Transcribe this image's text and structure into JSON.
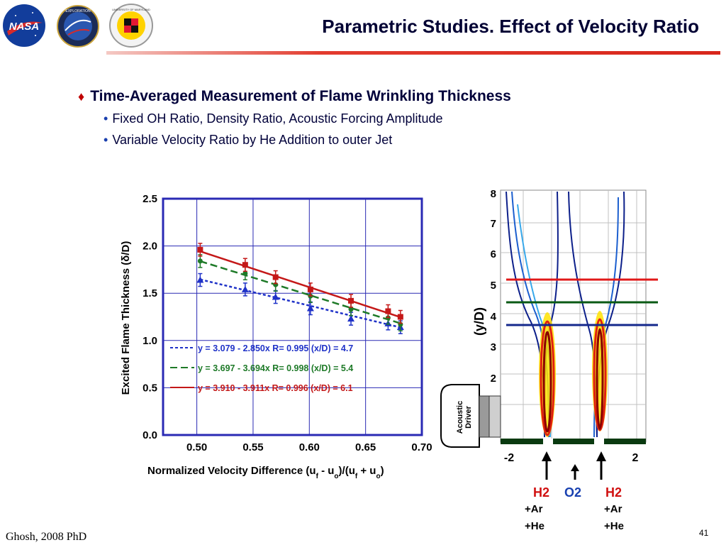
{
  "header": {
    "title": "Parametric Studies. Effect of Velocity Ratio",
    "logos": [
      "NASA",
      "EXPLORATION",
      "UNIVERSITY OF MARYLAND"
    ]
  },
  "bullets": {
    "main": "Time-Averaged Measurement of Flame Wrinkling Thickness",
    "sub": [
      "Fixed OH Ratio, Density Ratio, Acoustic Forcing Amplitude",
      "Variable Velocity Ratio by He Addition to outer Jet"
    ]
  },
  "chart_data": {
    "type": "scatter",
    "xlabel": "Normalized Velocity Difference (u_f - u_o)/(u_f + u_o)",
    "ylabel": "Excited Flame Thickness (δ/D)",
    "xlim": [
      0.47,
      0.7
    ],
    "ylim": [
      0.0,
      2.5
    ],
    "xticks": [
      "0.50",
      "0.55",
      "0.60",
      "0.65",
      "0.70"
    ],
    "yticks": [
      "0.0",
      "0.5",
      "1.0",
      "1.5",
      "2.0",
      "2.5"
    ],
    "grid": true,
    "legend_position": "lower-left",
    "series": [
      {
        "name": "y = 3.079 - 2.850x   R= 0.995 (x/D) = 4.7",
        "color": "#1f32c8",
        "marker": "triangle",
        "x": [
          0.503,
          0.543,
          0.57,
          0.601,
          0.637,
          0.67,
          0.681
        ],
        "y": [
          1.64,
          1.54,
          1.46,
          1.34,
          1.23,
          1.18,
          1.14
        ],
        "fit": [
          3.079,
          -2.85
        ]
      },
      {
        "name": "y = 3.697 - 3.694x   R= 0.998 (x/D) = 5.4",
        "color": "#1e7a28",
        "marker": "circle",
        "x": [
          0.503,
          0.543,
          0.57,
          0.601,
          0.637,
          0.67,
          0.681
        ],
        "y": [
          1.84,
          1.71,
          1.59,
          1.47,
          1.33,
          1.24,
          1.17
        ],
        "fit": [
          3.697,
          -3.694
        ]
      },
      {
        "name": "y = 3.910 - 3.911x   R= 0.996 (x/D) = 6.1",
        "color": "#c41818",
        "marker": "square",
        "x": [
          0.503,
          0.543,
          0.57,
          0.601,
          0.637,
          0.67,
          0.681
        ],
        "y": [
          1.96,
          1.8,
          1.67,
          1.54,
          1.42,
          1.31,
          1.25
        ],
        "fit": [
          3.91,
          -3.911
        ]
      }
    ]
  },
  "image_panel": {
    "ylabel": "(y/D)",
    "yticks": [
      "8",
      "7",
      "6",
      "5",
      "4",
      "3",
      "2"
    ],
    "xticks": [
      "-2",
      "2"
    ],
    "driver_label": [
      "Acoustic",
      "Driver"
    ],
    "jets": [
      {
        "name": "H2",
        "lines": [
          "+Ar",
          "+He"
        ],
        "color": "#d01010"
      },
      {
        "name": "O2",
        "lines": [],
        "color": "#1840b0"
      },
      {
        "name": "H2",
        "lines": [
          "+Ar",
          "+He"
        ],
        "color": "#d01010"
      }
    ],
    "line_colors": [
      "#e01818",
      "#0a5a14",
      "#14288c"
    ]
  },
  "footer": {
    "left": "Ghosh, 2008 PhD",
    "page": "41"
  }
}
